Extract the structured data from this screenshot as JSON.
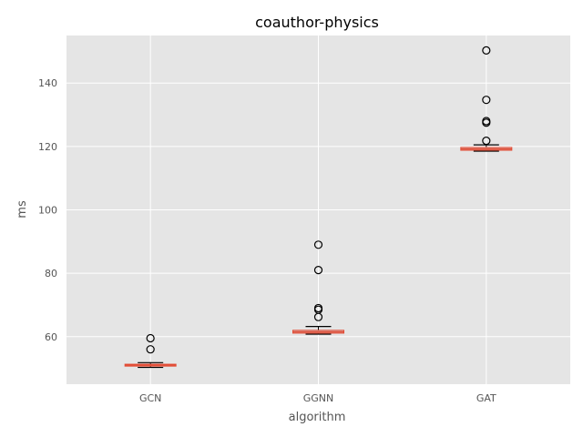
{
  "chart_data": {
    "type": "box",
    "title": "coauthor-physics",
    "xlabel": "algorithm",
    "ylabel": "ms",
    "categories": [
      "GCN",
      "GGNN",
      "GAT"
    ],
    "ylim": [
      45,
      155
    ],
    "yticks": [
      60,
      80,
      100,
      120,
      140
    ],
    "yticks_labels": [
      "60",
      "80",
      "100",
      "120",
      "140"
    ],
    "grid": true,
    "boxes": [
      {
        "name": "GCN",
        "whisker_low": 50.3,
        "q1": 50.7,
        "median": 51.0,
        "q3": 51.3,
        "whisker_high": 51.8,
        "outliers": [
          56.0,
          59.5
        ]
      },
      {
        "name": "GGNN",
        "whisker_low": 60.8,
        "q1": 61.1,
        "median": 61.5,
        "q3": 62.0,
        "whisker_high": 63.2,
        "outliers": [
          66.2,
          68.5,
          69.0,
          81.0,
          89.0
        ]
      },
      {
        "name": "GAT",
        "whisker_low": 118.5,
        "q1": 118.8,
        "median": 119.2,
        "q3": 119.7,
        "whisker_high": 120.5,
        "outliers": [
          121.8,
          127.5,
          128.0,
          134.7,
          150.3
        ]
      }
    ],
    "colors": {
      "background": "#e5e5e5",
      "grid": "#ffffff",
      "box_edge": "#e24a33",
      "median": "#e24a33",
      "box_fill": "#d5a9a3",
      "whisker": "#000000",
      "outlier_edge": "#000000"
    }
  }
}
